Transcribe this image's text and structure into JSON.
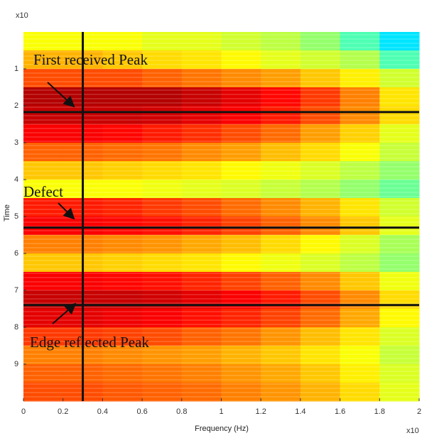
{
  "chart_data": {
    "type": "heatmap",
    "colormap": "jet",
    "y_multiplier": "x10",
    "x_multiplier": "x10",
    "xlabel": "Frequency (Hz)",
    "ylabel": "Time",
    "xlim": [
      0,
      2
    ],
    "ylim": [
      0,
      10
    ],
    "y_inverted": true,
    "xticks": [
      0,
      0.2,
      0.4,
      0.6,
      0.8,
      1,
      1.2,
      1.4,
      1.6,
      1.8,
      2
    ],
    "yticks": [
      1,
      2,
      3,
      4,
      5,
      6,
      7,
      8,
      9
    ],
    "z": [
      [
        0.62,
        0.62,
        0.62,
        0.6,
        0.6,
        0.58,
        0.56,
        0.52,
        0.45,
        0.35
      ],
      [
        0.7,
        0.7,
        0.68,
        0.66,
        0.65,
        0.63,
        0.6,
        0.58,
        0.55,
        0.45
      ],
      [
        0.8,
        0.8,
        0.8,
        0.78,
        0.76,
        0.74,
        0.72,
        0.68,
        0.64,
        0.58
      ],
      [
        0.95,
        0.95,
        0.95,
        0.95,
        0.93,
        0.9,
        0.87,
        0.82,
        0.75,
        0.65
      ],
      [
        0.93,
        0.93,
        0.93,
        0.92,
        0.9,
        0.88,
        0.85,
        0.8,
        0.74,
        0.66
      ],
      [
        0.88,
        0.88,
        0.87,
        0.85,
        0.83,
        0.8,
        0.77,
        0.72,
        0.67,
        0.6
      ],
      [
        0.78,
        0.78,
        0.77,
        0.76,
        0.74,
        0.72,
        0.69,
        0.66,
        0.62,
        0.57
      ],
      [
        0.68,
        0.68,
        0.67,
        0.66,
        0.65,
        0.63,
        0.61,
        0.59,
        0.56,
        0.52
      ],
      [
        0.62,
        0.62,
        0.62,
        0.61,
        0.6,
        0.59,
        0.57,
        0.55,
        0.52,
        0.48
      ],
      [
        0.85,
        0.85,
        0.84,
        0.82,
        0.8,
        0.77,
        0.74,
        0.7,
        0.65,
        0.58
      ],
      [
        0.88,
        0.88,
        0.87,
        0.86,
        0.84,
        0.81,
        0.78,
        0.74,
        0.68,
        0.6
      ],
      [
        0.75,
        0.75,
        0.74,
        0.73,
        0.71,
        0.69,
        0.66,
        0.63,
        0.59,
        0.54
      ],
      [
        0.68,
        0.68,
        0.67,
        0.66,
        0.65,
        0.63,
        0.61,
        0.59,
        0.56,
        0.52
      ],
      [
        0.88,
        0.88,
        0.87,
        0.86,
        0.84,
        0.81,
        0.78,
        0.74,
        0.68,
        0.61
      ],
      [
        0.93,
        0.93,
        0.93,
        0.92,
        0.9,
        0.88,
        0.85,
        0.8,
        0.74,
        0.66
      ],
      [
        0.9,
        0.9,
        0.89,
        0.88,
        0.86,
        0.84,
        0.81,
        0.77,
        0.71,
        0.63
      ],
      [
        0.82,
        0.82,
        0.81,
        0.8,
        0.78,
        0.76,
        0.73,
        0.69,
        0.65,
        0.59
      ],
      [
        0.75,
        0.75,
        0.74,
        0.73,
        0.72,
        0.7,
        0.68,
        0.65,
        0.62,
        0.57
      ],
      [
        0.78,
        0.78,
        0.77,
        0.76,
        0.75,
        0.73,
        0.71,
        0.68,
        0.64,
        0.59
      ],
      [
        0.8,
        0.8,
        0.79,
        0.78,
        0.77,
        0.75,
        0.73,
        0.7,
        0.66,
        0.6
      ]
    ],
    "vlines": [
      0.3
    ],
    "hlines": [
      2.17,
      5.3,
      7.4
    ],
    "annotations": [
      "First received Peak",
      "Defect",
      "Edge reflected Peak"
    ]
  }
}
